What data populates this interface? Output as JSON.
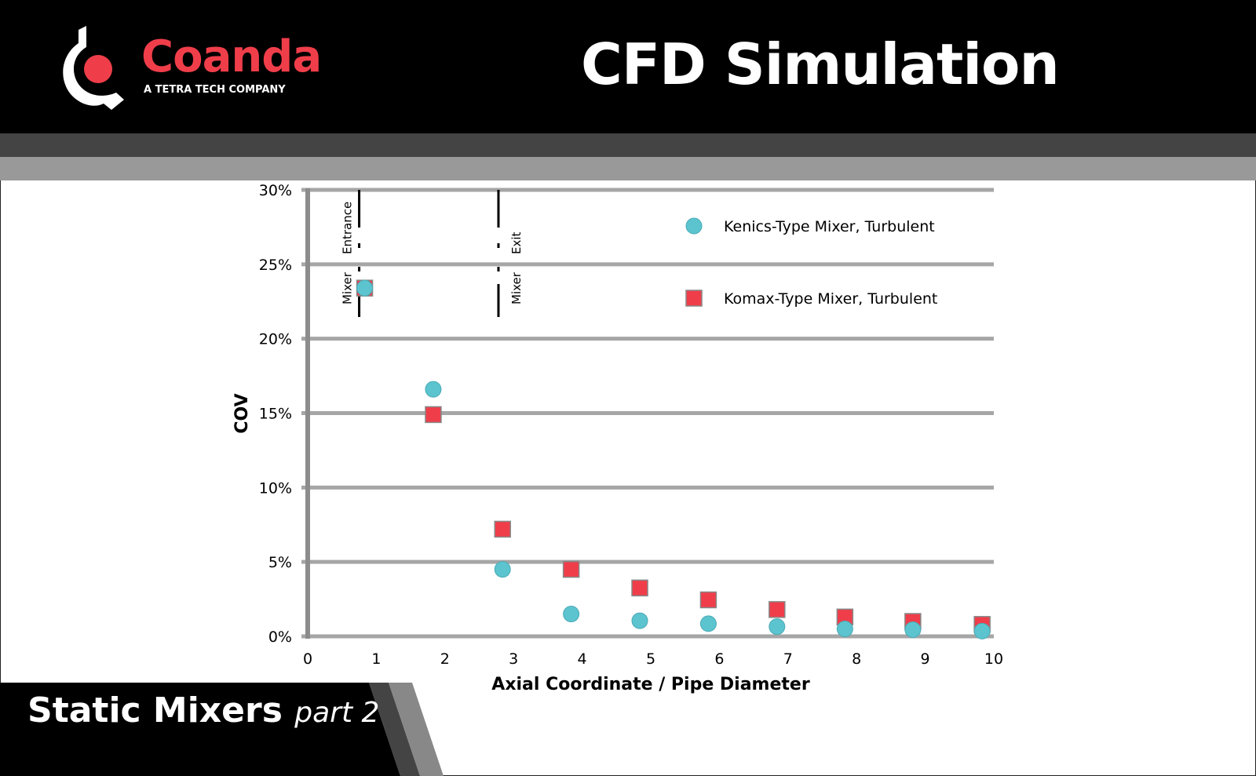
{
  "header": {
    "title": "CFD Simulation",
    "logo_name": "Coanda",
    "logo_tagline": "A TETRA TECH COMPANY",
    "brand_color": "#ef3e4a"
  },
  "footer": {
    "title": "Static Mixers",
    "subtitle": "part 2"
  },
  "chart_data": {
    "type": "scatter",
    "xlabel": "Axial Coordinate / Pipe Diameter",
    "ylabel": "COV",
    "xlim": [
      0,
      10
    ],
    "ylim": [
      0,
      30
    ],
    "xticks": [
      "0",
      "1",
      "2",
      "3",
      "4",
      "5",
      "6",
      "7",
      "8",
      "9",
      "10"
    ],
    "yticks": [
      "0%",
      "5%",
      "10%",
      "15%",
      "20%",
      "25%",
      "30%"
    ],
    "grid": "horizontal",
    "legend": "top-right",
    "annotations": [
      {
        "x": 0.75,
        "label_top": "Entrance",
        "label_bottom": "Mixer"
      },
      {
        "x": 2.78,
        "label_top": "Exit",
        "label_bottom": "Mixer"
      }
    ],
    "series": [
      {
        "name": "Kenics-Type Mixer, Turbulent",
        "marker": "circle",
        "color": "#5bc4cf",
        "x": [
          0.83,
          1.83,
          2.84,
          3.84,
          4.84,
          5.84,
          6.84,
          7.83,
          8.82,
          9.83
        ],
        "y": [
          23.4,
          16.6,
          4.5,
          1.5,
          1.05,
          0.85,
          0.65,
          0.5,
          0.45,
          0.35
        ]
      },
      {
        "name": "Komax-Type Mixer, Turbulent",
        "marker": "square",
        "color": "#ef3e4a",
        "x": [
          0.83,
          1.83,
          2.84,
          3.84,
          4.84,
          5.84,
          6.84,
          7.83,
          8.82,
          9.83
        ],
        "y": [
          23.4,
          14.9,
          7.2,
          4.5,
          3.25,
          2.45,
          1.8,
          1.3,
          1.0,
          0.8
        ]
      }
    ]
  }
}
